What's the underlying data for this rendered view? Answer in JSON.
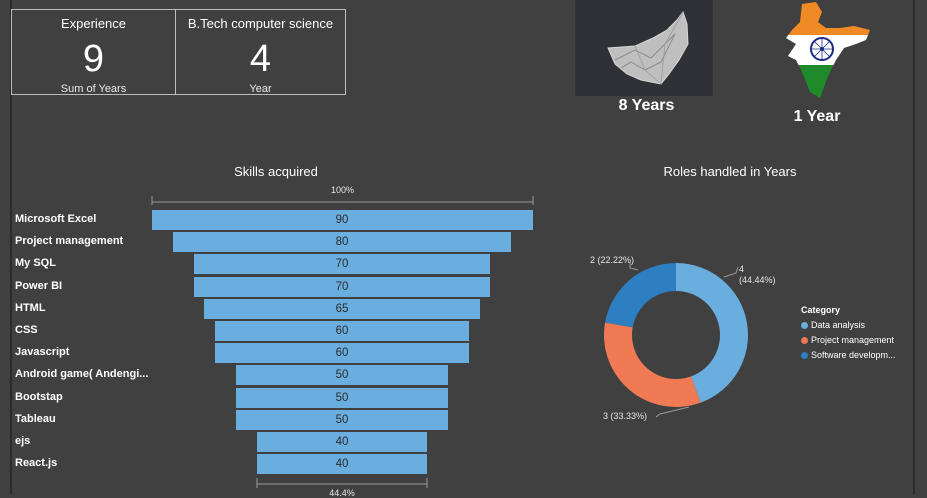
{
  "cards": [
    {
      "title": "Experience",
      "value": "9",
      "sub": "Sum of Years"
    },
    {
      "title": "B.Tech computer science",
      "value": "4",
      "sub": "Year"
    }
  ],
  "locations": {
    "uae": {
      "label": "8 Years",
      "icon": "uae-map-icon"
    },
    "india": {
      "label": "1 Year",
      "icon": "india-flag-map-icon"
    }
  },
  "colors": {
    "background": "#404040",
    "bar": "#6aaee0",
    "data_analysis": "#6aaee0",
    "project_management": "#f07a54",
    "software_development": "#2e7fc2"
  },
  "chart_data": [
    {
      "type": "bar",
      "title": "Skills acquired",
      "top_axis_label": "100%",
      "bottom_axis_label": "44.4%",
      "categories": [
        "Microsoft Excel",
        "Project management",
        "My SQL",
        "Power BI",
        "HTML",
        "CSS",
        "Javascript",
        "Android game( Andengi...",
        "Bootstap",
        "Tableau",
        "ejs",
        "React.js"
      ],
      "values": [
        90,
        80,
        70,
        70,
        65,
        60,
        60,
        50,
        50,
        50,
        40,
        40
      ]
    },
    {
      "type": "pie",
      "title": "Roles handled in Years",
      "legend_title": "Category",
      "legend_position": "right",
      "labels": [
        "Data analysis",
        "Project management",
        "Software developm..."
      ],
      "values": [
        4,
        3,
        2
      ],
      "data_labels": [
        {
          "line1": "4",
          "line2": "(44.44%)"
        },
        {
          "line1": "3 (33.33%)",
          "line2": ""
        },
        {
          "line1": "2 (22.22%)",
          "line2": ""
        }
      ]
    }
  ]
}
